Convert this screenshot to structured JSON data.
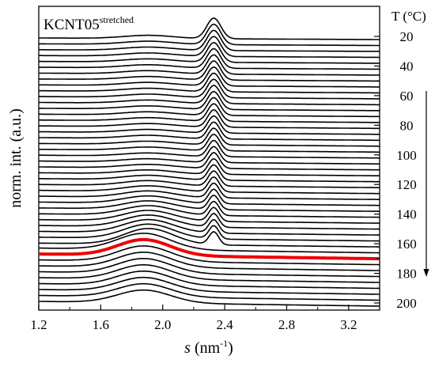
{
  "chart_data": {
    "type": "line",
    "sample_label": {
      "main": "KCNT05",
      "superscript": "stretched"
    },
    "xlabel": {
      "symbol": "s",
      "unit_prefix": " (nm",
      "unit_exponent": "-1",
      "unit_suffix": ")"
    },
    "ylabel": "norm. int. (a.u.)",
    "temperature_axis_title": "T (°C)",
    "xlim": [
      1.2,
      3.4
    ],
    "x_ticks": [
      "1.2",
      "1.6",
      "2.0",
      "2.4",
      "2.8",
      "3.2"
    ],
    "x_tick_values": [
      1.2,
      1.6,
      2.0,
      2.4,
      2.8,
      3.2
    ],
    "temperature_ticks": [
      "20",
      "40",
      "60",
      "80",
      "100",
      "120",
      "140",
      "160",
      "180",
      "200"
    ],
    "temperature_tick_values": [
      20,
      40,
      60,
      80,
      100,
      120,
      140,
      160,
      180,
      200
    ],
    "temperature_range": [
      20,
      200
    ],
    "curve_temperatures": [
      20,
      24,
      28,
      32,
      36,
      40,
      44,
      48,
      52,
      56,
      60,
      64,
      68,
      72,
      76,
      80,
      84,
      88,
      92,
      96,
      100,
      104,
      108,
      112,
      116,
      120,
      124,
      128,
      132,
      136,
      140,
      144,
      148,
      152,
      156,
      160,
      164,
      168,
      172,
      176,
      180,
      184,
      188,
      192,
      196,
      200
    ],
    "highlighted_temperature": 168,
    "crystal_peak_position": 2.33,
    "amorphous_halo_position": 1.88,
    "melting_temperature": 160,
    "trend": "stacked intensity profiles vs temperature; sharp crystalline reflection near 2.33 nm^-1 vanishes around 160 °C leaving a broad amorphous halo near 1.9 nm^-1",
    "arrow_direction": "down",
    "arrow_range": [
      56,
      178
    ],
    "grid": false,
    "colors": {
      "curves": "#000000",
      "highlight": "#ee0000",
      "axes": "#000000"
    }
  }
}
